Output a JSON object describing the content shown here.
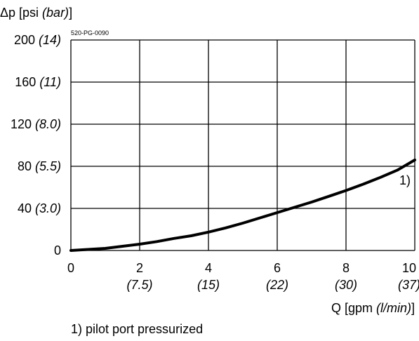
{
  "chart_data": {
    "type": "line",
    "figure_code": "520-PG-0090",
    "ylabel": {
      "main": "Δp [psi ",
      "alt": "(bar)",
      "close": "]"
    },
    "xlabel": {
      "main": "Q [gpm ",
      "alt": "(l/min)",
      "close": "]"
    },
    "xlim": [
      0,
      10
    ],
    "ylim": [
      0,
      200
    ],
    "grid": true,
    "x_ticks": [
      {
        "value": 0,
        "label": "0",
        "alt": ""
      },
      {
        "value": 2,
        "label": "2",
        "alt": "(7.5)"
      },
      {
        "value": 4,
        "label": "4",
        "alt": "(15)"
      },
      {
        "value": 6,
        "label": "6",
        "alt": "(22)"
      },
      {
        "value": 8,
        "label": "8",
        "alt": "(30)"
      },
      {
        "value": 10,
        "label": "10",
        "alt": "(37)"
      }
    ],
    "y_ticks": [
      {
        "value": 0,
        "label": "0",
        "alt": ""
      },
      {
        "value": 40,
        "label": "40",
        "alt": "(3.0)"
      },
      {
        "value": 80,
        "label": "80",
        "alt": "(5.5)"
      },
      {
        "value": 120,
        "label": "120",
        "alt": "(8.0)"
      },
      {
        "value": 160,
        "label": "160",
        "alt": "(11)"
      },
      {
        "value": 200,
        "label": "200",
        "alt": "(14)"
      }
    ],
    "series": [
      {
        "label": "1)",
        "x": [
          0,
          0.5,
          1,
          1.5,
          2,
          2.5,
          3,
          3.5,
          4,
          4.5,
          5,
          5.5,
          6,
          6.5,
          7,
          7.5,
          8,
          8.5,
          9,
          9.5,
          10
        ],
        "y": [
          0,
          1,
          2,
          4,
          6,
          8.5,
          11.5,
          14,
          17.5,
          21.5,
          26,
          31,
          36,
          41,
          46,
          51.5,
          57,
          63,
          69.5,
          76.5,
          86
        ]
      }
    ],
    "footnote": "1) pilot port pressurized"
  }
}
